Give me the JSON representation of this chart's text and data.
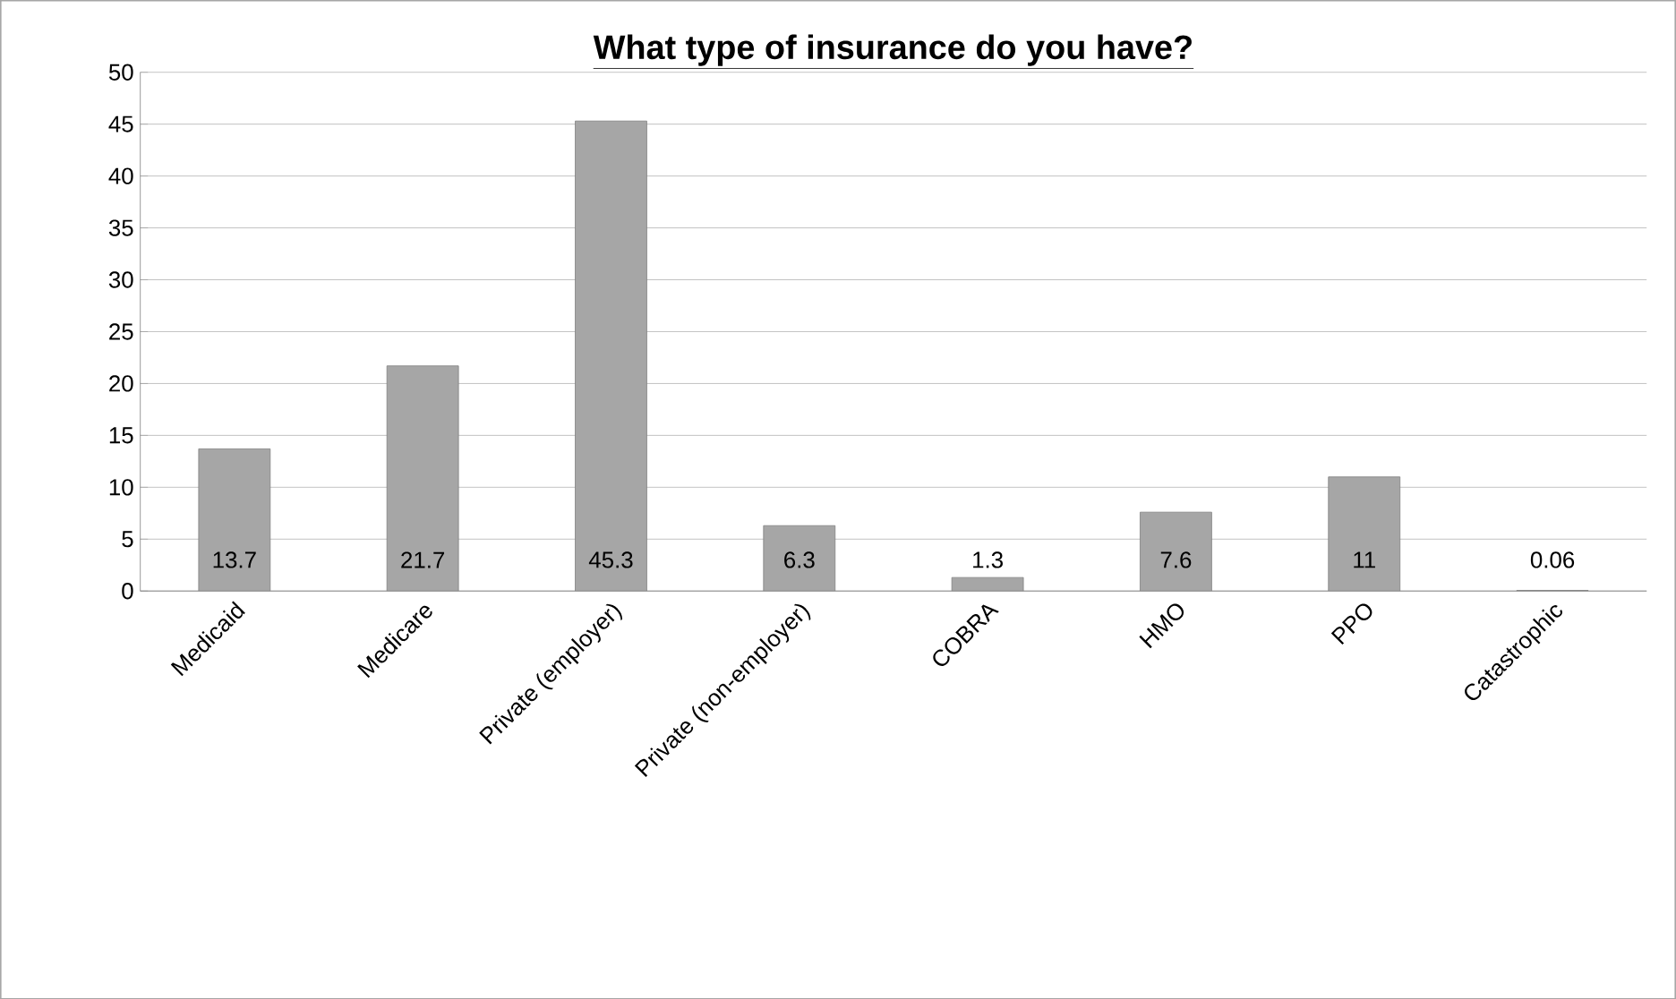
{
  "chart_data": {
    "type": "bar",
    "title": "What type of insurance do you have?",
    "categories": [
      "Medicaid",
      "Medicare",
      "Private (employer)",
      "Private (non-employer)",
      "COBRA",
      "HMO",
      "PPO",
      "Catastrophic"
    ],
    "values": [
      13.7,
      21.7,
      45.3,
      6.3,
      1.3,
      7.6,
      11,
      0.06
    ],
    "color": "#a6a6a6",
    "ylim": [
      0,
      50
    ],
    "yticks": [
      0,
      5,
      10,
      15,
      20,
      25,
      30,
      35,
      40,
      45,
      50
    ],
    "grid": "y",
    "data_labels": true
  }
}
